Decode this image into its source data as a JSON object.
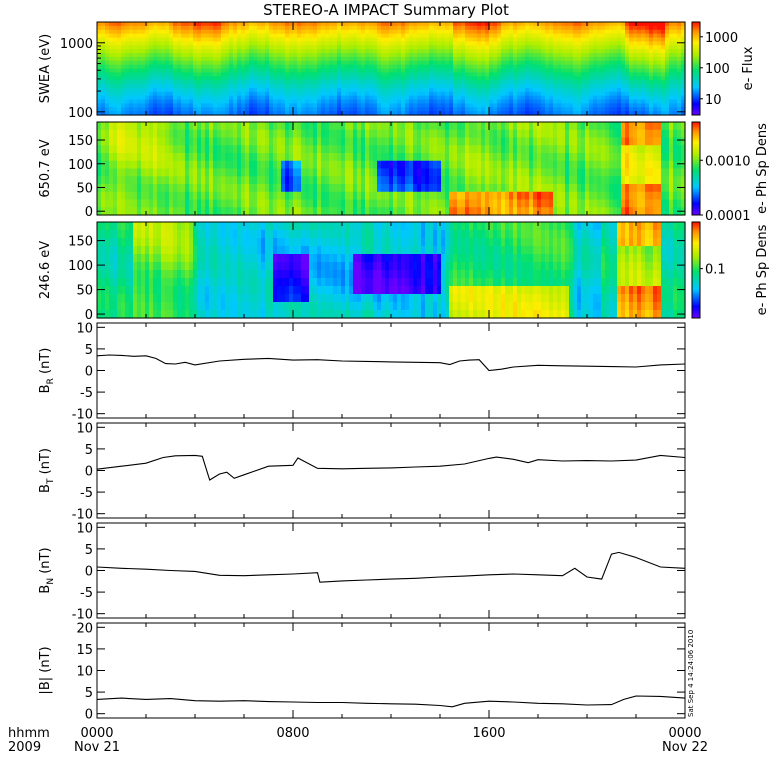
{
  "title": "STEREO-A IMPACT Summary Plot",
  "timestamp": "Sat Sep  4 14:24:06 2010",
  "x_axis": {
    "corner_labels": [
      "hhmm",
      "2009"
    ],
    "ticks": [
      {
        "time": "0000",
        "date": "Nov 21"
      },
      {
        "time": "0800",
        "date": ""
      },
      {
        "time": "1600",
        "date": ""
      },
      {
        "time": "0000",
        "date": "Nov 22"
      }
    ]
  },
  "colors": {
    "axis": "#000000",
    "line": "#000000",
    "background": "#ffffff"
  },
  "chart_data": [
    {
      "type": "heatmap",
      "name": "swea",
      "ylabel": "SWEA (eV)",
      "ylog": true,
      "ylim": [
        90,
        2000
      ],
      "yticks": [
        {
          "v": 1000,
          "label": "1000"
        },
        {
          "v": 100,
          "label": "100"
        }
      ],
      "colorbar": {
        "label": "e- Flux",
        "log": true,
        "range": [
          3,
          3000
        ],
        "ticks": [
          {
            "v": 1000,
            "label": "1000"
          },
          {
            "v": 100,
            "label": "100"
          },
          {
            "v": 10,
            "label": "10"
          }
        ]
      }
    },
    {
      "type": "heatmap",
      "name": "pad650",
      "ylabel": "650.7 eV",
      "ylim": [
        -8,
        188
      ],
      "yticks": [
        {
          "v": 150,
          "label": "150"
        },
        {
          "v": 100,
          "label": "100"
        },
        {
          "v": 50,
          "label": "50"
        },
        {
          "v": 0,
          "label": "0"
        }
      ],
      "colorbar": {
        "label": "e- Ph Sp Dens",
        "log": true,
        "range": [
          0.0001,
          0.005
        ],
        "ticks": [
          {
            "v": 0.001,
            "label": "0.0010"
          },
          {
            "v": 0.0001,
            "label": "0.0001"
          }
        ]
      }
    },
    {
      "type": "heatmap",
      "name": "pad246",
      "ylabel": "246.6 eV",
      "ylim": [
        -8,
        188
      ],
      "yticks": [
        {
          "v": 150,
          "label": "150"
        },
        {
          "v": 100,
          "label": "100"
        },
        {
          "v": 50,
          "label": "50"
        },
        {
          "v": 0,
          "label": "0"
        }
      ],
      "colorbar": {
        "label": "e- Ph Sp Dens",
        "log": true,
        "range": [
          0.015,
          0.6
        ],
        "ticks": [
          {
            "v": 0.1,
            "label": "0.1"
          }
        ]
      }
    },
    {
      "type": "line",
      "name": "br",
      "ylabel_main": "B",
      "ylabel_sub": "R",
      "ylabel_unit": " (nT)",
      "ylim": [
        -11,
        11
      ],
      "yticks": [
        {
          "v": 10,
          "label": "10"
        },
        {
          "v": 5,
          "label": "5"
        },
        {
          "v": 0,
          "label": "0"
        },
        {
          "v": -5,
          "label": "-5"
        },
        {
          "v": -10,
          "label": "-10"
        }
      ],
      "x": [
        0,
        0.5,
        1,
        1.5,
        2,
        2.4,
        2.8,
        3.2,
        3.6,
        4,
        5,
        6,
        7,
        8,
        9,
        10,
        11,
        12,
        13,
        14,
        14.4,
        14.8,
        15.2,
        15.6,
        16,
        16.5,
        17,
        18,
        19,
        20,
        21,
        22,
        23,
        24
      ],
      "y": [
        3.4,
        3.6,
        3.5,
        3.3,
        3.4,
        2.8,
        1.6,
        1.5,
        1.9,
        1.3,
        2.2,
        2.6,
        2.8,
        2.4,
        2.5,
        2.2,
        2.1,
        2.0,
        1.9,
        1.8,
        1.4,
        2.2,
        2.4,
        2.5,
        0.0,
        0.3,
        0.8,
        1.2,
        1.1,
        1.0,
        0.9,
        0.8,
        1.3,
        1.5
      ]
    },
    {
      "type": "line",
      "name": "bt",
      "ylabel_main": "B",
      "ylabel_sub": "T",
      "ylabel_unit": " (nT)",
      "ylim": [
        -11,
        11
      ],
      "yticks": [
        {
          "v": 10,
          "label": "10"
        },
        {
          "v": 5,
          "label": "5"
        },
        {
          "v": 0,
          "label": "0"
        },
        {
          "v": -5,
          "label": "-5"
        },
        {
          "v": -10,
          "label": "-10"
        }
      ],
      "x": [
        0,
        1,
        2,
        2.7,
        3.2,
        4,
        4.3,
        4.6,
        5,
        5.3,
        5.6,
        6,
        7,
        8,
        8.2,
        9,
        10,
        11,
        12,
        13,
        14,
        15,
        16,
        16.3,
        17,
        17.6,
        18,
        19,
        20,
        21,
        22,
        23,
        24
      ],
      "y": [
        0.3,
        1.0,
        1.7,
        3.0,
        3.4,
        3.5,
        3.3,
        -2.2,
        -0.8,
        -0.4,
        -1.8,
        -1.0,
        1.0,
        1.2,
        2.9,
        0.5,
        0.4,
        0.5,
        0.6,
        0.8,
        1.0,
        1.5,
        2.8,
        3.1,
        2.6,
        1.8,
        2.5,
        2.2,
        2.3,
        2.2,
        2.4,
        3.5,
        3.0
      ]
    },
    {
      "type": "line",
      "name": "bn",
      "ylabel_main": "B",
      "ylabel_sub": "N",
      "ylabel_unit": " (nT)",
      "ylim": [
        -11,
        11
      ],
      "yticks": [
        {
          "v": 10,
          "label": "10"
        },
        {
          "v": 5,
          "label": "5"
        },
        {
          "v": 0,
          "label": "0"
        },
        {
          "v": -5,
          "label": "-5"
        },
        {
          "v": -10,
          "label": "-10"
        }
      ],
      "x": [
        0,
        1,
        2,
        3,
        4,
        5,
        6,
        7,
        8,
        9,
        9.1,
        10,
        11,
        12,
        13,
        14,
        15,
        16,
        17,
        18,
        19,
        19.5,
        20,
        20.6,
        21,
        21.3,
        22,
        23,
        24
      ],
      "y": [
        0.8,
        0.5,
        0.3,
        0.0,
        -0.2,
        -1.1,
        -1.2,
        -1.0,
        -0.8,
        -0.5,
        -2.7,
        -2.4,
        -2.2,
        -2.0,
        -1.8,
        -1.5,
        -1.3,
        -1.0,
        -0.8,
        -1.0,
        -1.2,
        0.5,
        -1.5,
        -2.0,
        3.8,
        4.2,
        3.0,
        0.8,
        0.5
      ]
    },
    {
      "type": "line",
      "name": "bmag",
      "ylabel_main": "|B| (nT)",
      "ylabel_sub": "",
      "ylabel_unit": "",
      "ylim": [
        -1,
        21
      ],
      "yticks": [
        {
          "v": 20,
          "label": "20"
        },
        {
          "v": 15,
          "label": "15"
        },
        {
          "v": 10,
          "label": "10"
        },
        {
          "v": 5,
          "label": "5"
        },
        {
          "v": 0,
          "label": "0"
        }
      ],
      "x": [
        0,
        1,
        2,
        3,
        4,
        5,
        6,
        7,
        8,
        9,
        10,
        11,
        12,
        13,
        14,
        14.5,
        15,
        16,
        17,
        18,
        19,
        20,
        21,
        21.5,
        22,
        23,
        24
      ],
      "y": [
        3.3,
        3.6,
        3.3,
        3.5,
        3.0,
        2.9,
        3.0,
        2.8,
        2.7,
        2.6,
        2.6,
        2.4,
        2.3,
        2.2,
        1.9,
        1.6,
        2.4,
        2.9,
        2.7,
        2.4,
        2.3,
        2.0,
        2.1,
        3.3,
        4.1,
        4.0,
        3.6
      ]
    }
  ]
}
